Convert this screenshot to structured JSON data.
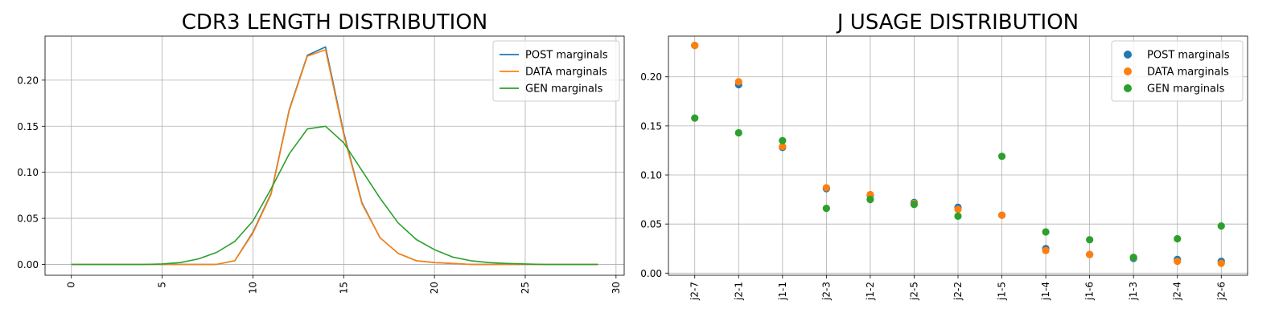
{
  "chart_data": [
    {
      "type": "line",
      "title": "CDR3 LENGTH DISTRIBUTION",
      "xlabel": "",
      "ylabel": "",
      "xlim": [
        -1.45,
        30.45
      ],
      "ylim": [
        -0.0118,
        0.2478
      ],
      "grid": true,
      "legend_position": "top-right",
      "x_ticks": [
        0,
        5,
        10,
        15,
        20,
        25,
        30
      ],
      "y_ticks": [
        0.0,
        0.05,
        0.1,
        0.15,
        0.2
      ],
      "y_tick_labels": [
        "0.00",
        "0.05",
        "0.10",
        "0.15",
        "0.20"
      ],
      "x": [
        0,
        1,
        2,
        3,
        4,
        5,
        6,
        7,
        8,
        9,
        10,
        11,
        12,
        13,
        14,
        15,
        16,
        17,
        18,
        19,
        20,
        21,
        22,
        23,
        24,
        25,
        26,
        27,
        28,
        29
      ],
      "series": [
        {
          "name": "POST marginals",
          "color": "#1f77b4",
          "values": [
            0,
            0,
            0,
            0,
            0,
            0,
            0,
            0,
            0,
            0.004,
            0.035,
            0.077,
            0.168,
            0.227,
            0.236,
            0.143,
            0.067,
            0.029,
            0.012,
            0.004,
            0.002,
            0.001,
            0,
            0,
            0,
            0,
            0,
            0,
            0,
            0
          ]
        },
        {
          "name": "DATA marginals",
          "color": "#ff7f0e",
          "values": [
            0,
            0,
            0,
            0,
            0,
            0,
            0,
            0,
            0,
            0.004,
            0.034,
            0.076,
            0.167,
            0.226,
            0.233,
            0.141,
            0.066,
            0.029,
            0.012,
            0.004,
            0.002,
            0.001,
            0,
            0,
            0,
            0,
            0,
            0,
            0,
            0
          ]
        },
        {
          "name": "GEN marginals",
          "color": "#2ca02c",
          "values": [
            0,
            0,
            0,
            0,
            0,
            0.0005,
            0.002,
            0.006,
            0.013,
            0.025,
            0.047,
            0.082,
            0.12,
            0.147,
            0.15,
            0.132,
            0.102,
            0.072,
            0.045,
            0.027,
            0.016,
            0.008,
            0.004,
            0.002,
            0.001,
            0.0005,
            0,
            0,
            0,
            0
          ]
        }
      ]
    },
    {
      "type": "scatter",
      "title": "J USAGE DISTRIBUTION",
      "xlabel": "",
      "ylabel": "",
      "ylim": [
        -0.0022,
        0.2415
      ],
      "grid": true,
      "legend_position": "top-right",
      "categories": [
        "j2-7",
        "j2-1",
        "j1-1",
        "j2-3",
        "j1-2",
        "j2-5",
        "j2-2",
        "j1-5",
        "j1-4",
        "j1-6",
        "j1-3",
        "j2-4",
        "j2-6"
      ],
      "y_ticks": [
        0.0,
        0.05,
        0.1,
        0.15,
        0.2
      ],
      "y_tick_labels": [
        "0.00",
        "0.05",
        "0.10",
        "0.15",
        "0.20"
      ],
      "series": [
        {
          "name": "POST marginals",
          "color": "#1f77b4",
          "values": [
            0.232,
            0.192,
            0.128,
            0.086,
            0.079,
            0.072,
            0.067,
            0.059,
            0.025,
            0.019,
            0.015,
            0.014,
            0.012
          ]
        },
        {
          "name": "DATA marginals",
          "color": "#ff7f0e",
          "values": [
            0.232,
            0.195,
            0.129,
            0.087,
            0.08,
            0.071,
            0.065,
            0.059,
            0.023,
            0.019,
            0.016,
            0.012,
            0.01
          ]
        },
        {
          "name": "GEN marginals",
          "color": "#2ca02c",
          "values": [
            0.158,
            0.143,
            0.135,
            0.066,
            0.075,
            0.07,
            0.058,
            0.119,
            0.042,
            0.034,
            0.016,
            0.035,
            0.048
          ]
        }
      ]
    }
  ]
}
